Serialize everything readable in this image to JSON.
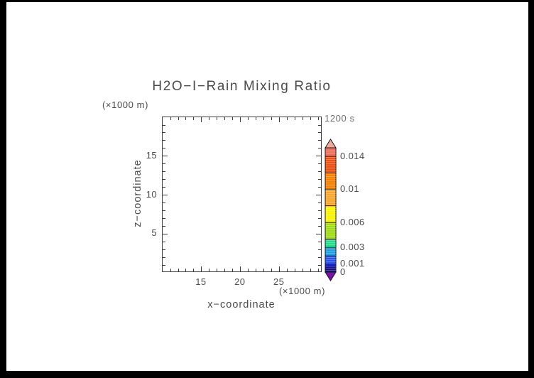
{
  "title": "H2O−I−Rain Mixing Ratio",
  "time_label": "1200 s",
  "x_axis_label": "x−coordinate",
  "y_axis_label": "z−coordinate",
  "x_units_label": "(×1000 m)",
  "y_units_label": "(×1000 m)",
  "colors": {
    "frame": "#000000",
    "axis_line": "#3c3c3c",
    "text": "#4c4c4c",
    "time_text": "#6f6f6f",
    "background": "#ffffff"
  },
  "chart_data": {
    "type": "heatmap",
    "title": "H2O−I−Rain Mixing Ratio",
    "subtitle": "1200 s",
    "xlabel": "x−coordinate",
    "ylabel": "z−coordinate",
    "x_units": "×1000 m",
    "y_units": "×1000 m",
    "x": {
      "range": [
        10,
        30.5
      ],
      "major_ticks": [
        15,
        20,
        25
      ],
      "minor_tick_step": 1
    },
    "y": {
      "range": [
        0,
        20
      ],
      "major_ticks": [
        5,
        10,
        15
      ],
      "minor_tick_step": 1
    },
    "grid": false,
    "values": [],
    "note": "plot area is blank — no contour fill visible at this time step",
    "colorbar": {
      "position": "right",
      "min": 0,
      "max": 0.015,
      "levels": [
        0,
        0.0005,
        0.001,
        0.002,
        0.003,
        0.004,
        0.006,
        0.008,
        0.01,
        0.012,
        0.014,
        0.015
      ],
      "segment_colors": [
        "#14107d",
        "#1515c8",
        "#2a52f0",
        "#1fa0e0",
        "#1fde8c",
        "#a0dc14",
        "#f9f400",
        "#fba52b",
        "#f98000",
        "#f25011",
        "#f3705a"
      ],
      "over_color": "#f2a89b",
      "under_color": "#7b11a3",
      "outline_color": "#1a1a1a",
      "labels": [
        "0.014",
        "0.01",
        "0.006",
        "0.003",
        "0.001",
        "0"
      ],
      "labeled_levels": [
        0.014,
        0.01,
        0.006,
        0.003,
        0.001,
        0
      ]
    }
  }
}
